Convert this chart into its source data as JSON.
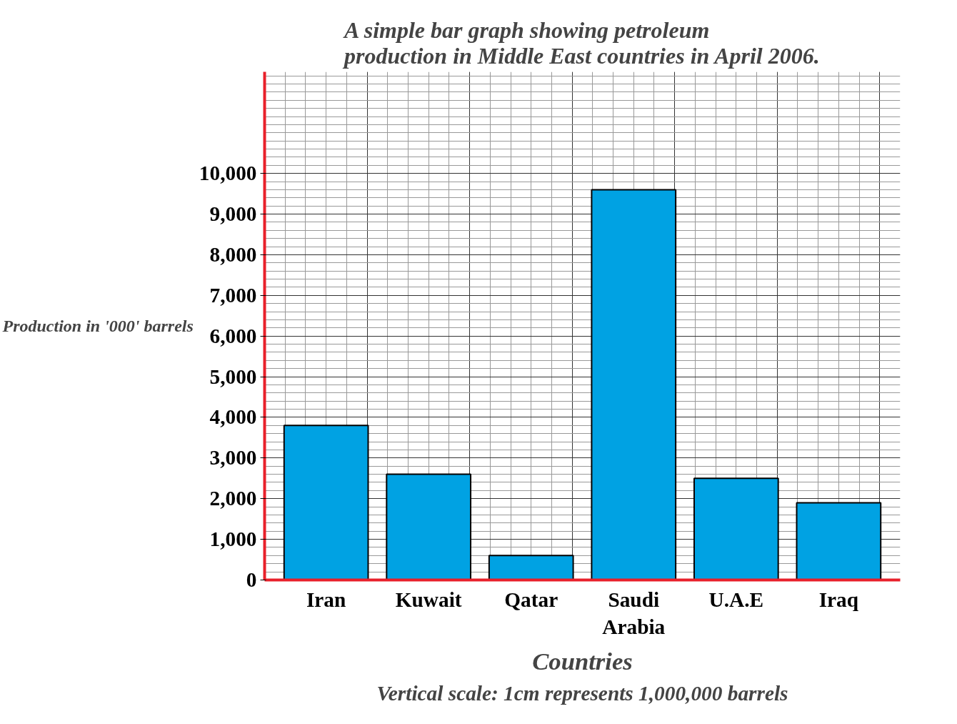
{
  "chart_data": {
    "type": "bar",
    "title": "A simple bar graph showing petroleum production in Middle East countries in April 2006.",
    "xlabel": "Countries",
    "ylabel": "Production in '000' barrels",
    "annotations": [
      "Vertical scale: 1cm represents 1,000,000 barrels"
    ],
    "categories": [
      "Iran",
      "Kuwait",
      "Qatar",
      "Saudi Arabia",
      "U.A.E",
      "Iraq"
    ],
    "values": [
      3800,
      2600,
      600,
      9600,
      2500,
      1900
    ],
    "color": "#00a2e3",
    "ylim": [
      0,
      12500
    ],
    "yticks": [
      0,
      {
        "value": 1000,
        "label": "1,000"
      },
      {
        "value": 2000,
        "label": "2,000"
      },
      {
        "value": 3000,
        "label": "3,000"
      },
      {
        "value": 4000,
        "label": "4,000"
      },
      {
        "value": 5000,
        "label": "5,000"
      },
      {
        "value": 6000,
        "label": "6,000"
      },
      {
        "value": 7000,
        "label": "7,000"
      },
      {
        "value": 8000,
        "label": "8,000"
      },
      {
        "value": 9000,
        "label": "9,000"
      },
      {
        "value": 10000,
        "label": "10,000"
      }
    ],
    "grid": true
  }
}
